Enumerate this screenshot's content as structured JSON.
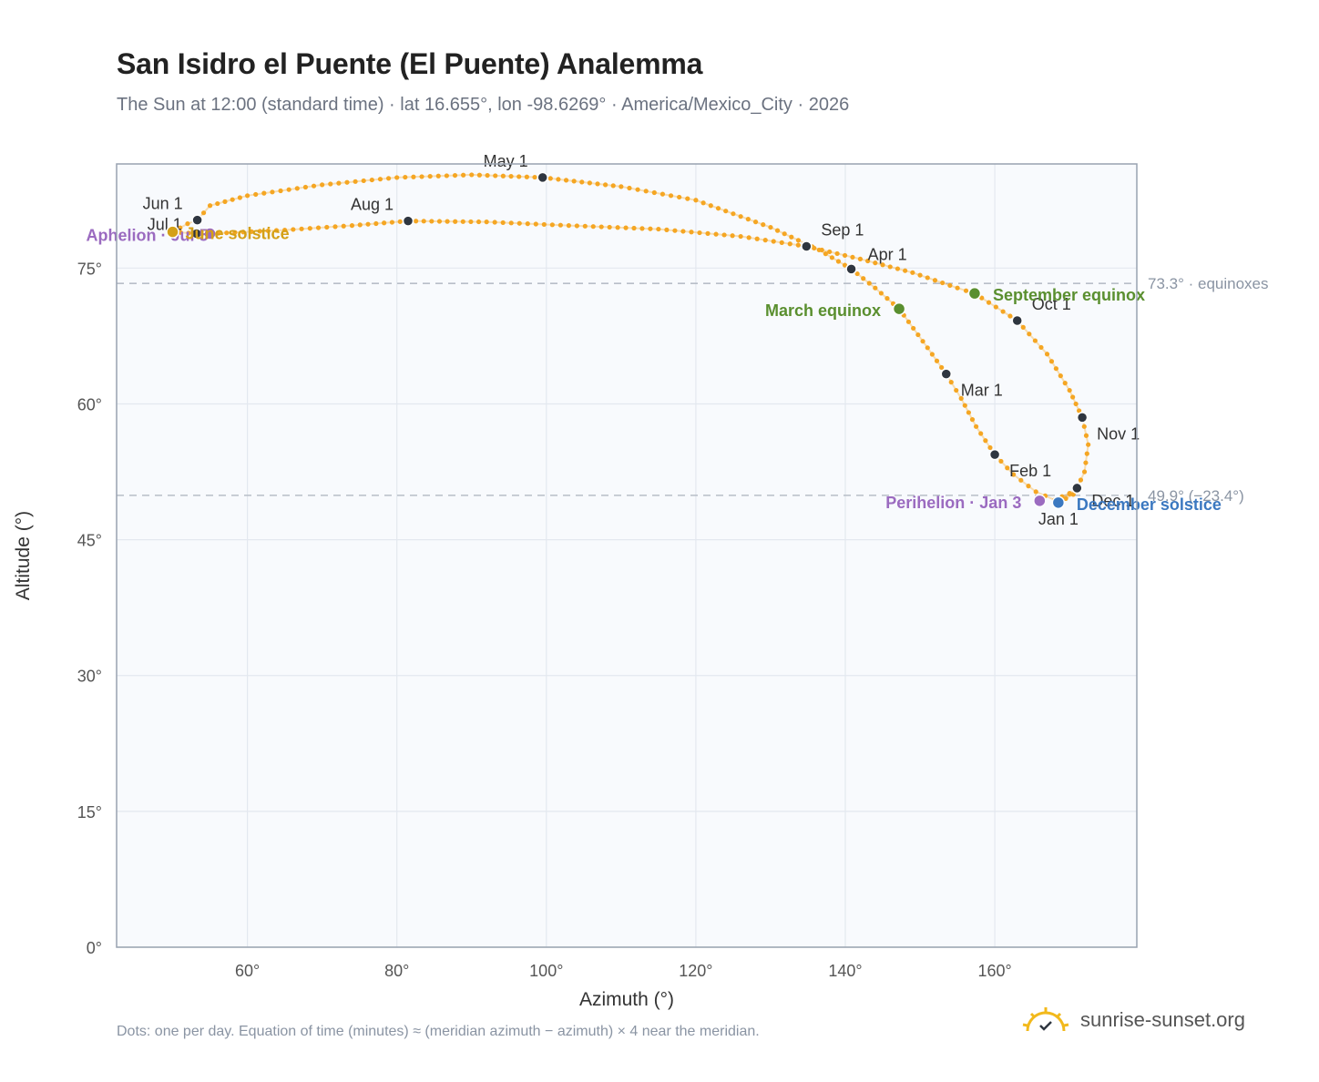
{
  "header": {
    "title": "San Isidro el Puente (El Puente) Analemma",
    "subtitle": "The Sun at 12:00 (standard time) · lat 16.655°, lon -98.6269° · America/Mexico_City · 2026"
  },
  "footer": {
    "note": "Dots: one per day. Equation of time (minutes) ≈ (meridian azimuth − azimuth) × 4 near the meridian.",
    "brand": "sunrise-sunset.org"
  },
  "colors": {
    "curve": "#f5a623",
    "month_dot": "#2f3640",
    "equinox": "#5a8f2f",
    "aphelion": "#9b6bc0",
    "december_solstice": "#3b78c0",
    "june_solstice": "#d4a017",
    "plot_bg": "#f8fafd",
    "grid": "#e3e8ef",
    "ref_line": "#b8bec8"
  },
  "chart_data": {
    "type": "scatter",
    "xlabel": "Azimuth (°)",
    "ylabel": "Altitude (°)",
    "xlim": [
      42.5,
      179
    ],
    "ylim": [
      0,
      86.5
    ],
    "x_ticks": [
      60,
      80,
      100,
      120,
      140,
      160
    ],
    "x_tick_labels": [
      "60°",
      "80°",
      "100°",
      "120°",
      "140°",
      "160°"
    ],
    "y_ticks": [
      0,
      15,
      30,
      45,
      60,
      75
    ],
    "y_tick_labels": [
      "0°",
      "15°",
      "30°",
      "45°",
      "60°",
      "75°"
    ],
    "grid": true,
    "reference_lines": [
      {
        "y": 73.3,
        "label": "73.3° · equinoxes"
      },
      {
        "y": 49.9,
        "label": "49.9° (−23.4°)"
      }
    ],
    "curve_points": [
      [
        168.5,
        49.1
      ],
      [
        170.5,
        50.0
      ],
      [
        171.0,
        50.5
      ],
      [
        168.0,
        49.4
      ],
      [
        165.5,
        50.3
      ],
      [
        162.5,
        52.2
      ],
      [
        160.0,
        54.4
      ],
      [
        157.5,
        57.5
      ],
      [
        155.5,
        60.6
      ],
      [
        153.5,
        63.3
      ],
      [
        151.0,
        66.2
      ],
      [
        147.2,
        70.5
      ],
      [
        144.0,
        72.8
      ],
      [
        140.8,
        74.9
      ],
      [
        136.5,
        77.0
      ],
      [
        130.0,
        79.5
      ],
      [
        120.0,
        82.5
      ],
      [
        110.0,
        84.0
      ],
      [
        99.5,
        85.0
      ],
      [
        90.0,
        85.3
      ],
      [
        80.0,
        85.0
      ],
      [
        70.0,
        84.2
      ],
      [
        60.0,
        83.0
      ],
      [
        55.0,
        81.9
      ],
      [
        53.3,
        80.3
      ],
      [
        52.0,
        79.9
      ],
      [
        50.0,
        79.0
      ],
      [
        53.2,
        78.8
      ],
      [
        55.0,
        78.8
      ],
      [
        65.0,
        79.2
      ],
      [
        74.0,
        79.7
      ],
      [
        81.5,
        80.2
      ],
      [
        92.0,
        80.1
      ],
      [
        103.0,
        79.7
      ],
      [
        115.0,
        79.3
      ],
      [
        126.0,
        78.5
      ],
      [
        134.8,
        77.4
      ],
      [
        142.0,
        76.0
      ],
      [
        149.0,
        74.5
      ],
      [
        155.0,
        72.8
      ],
      [
        157.3,
        72.2
      ],
      [
        163.0,
        69.2
      ],
      [
        167.0,
        65.5
      ],
      [
        170.0,
        61.5
      ],
      [
        171.7,
        58.5
      ],
      [
        172.5,
        55.5
      ],
      [
        172.0,
        52.5
      ],
      [
        171.0,
        50.7
      ],
      [
        169.0,
        49.4
      ],
      [
        168.5,
        49.1
      ]
    ],
    "month_markers": [
      {
        "label": "Jan 1",
        "x": 168.5,
        "y": 49.1
      },
      {
        "label": "Feb 1",
        "x": 160.0,
        "y": 54.4
      },
      {
        "label": "Mar 1",
        "x": 153.5,
        "y": 63.3
      },
      {
        "label": "Apr 1",
        "x": 140.8,
        "y": 74.9
      },
      {
        "label": "May 1",
        "x": 99.5,
        "y": 85.0
      },
      {
        "label": "Jun 1",
        "x": 53.3,
        "y": 80.3
      },
      {
        "label": "Jul 1",
        "x": 53.2,
        "y": 78.8
      },
      {
        "label": "Aug 1",
        "x": 81.5,
        "y": 80.2
      },
      {
        "label": "Sep 1",
        "x": 134.8,
        "y": 77.4
      },
      {
        "label": "Oct 1",
        "x": 163.0,
        "y": 69.2
      },
      {
        "label": "Nov 1",
        "x": 171.7,
        "y": 58.5
      },
      {
        "label": "Dec 1",
        "x": 171.0,
        "y": 50.7
      }
    ],
    "events": [
      {
        "label": "March equinox",
        "x": 147.2,
        "y": 70.5,
        "color_key": "equinox"
      },
      {
        "label": "September equinox",
        "x": 157.3,
        "y": 72.2,
        "color_key": "equinox"
      },
      {
        "label": "Perihelion · Jan 3",
        "x": 166.0,
        "y": 49.3,
        "color_key": "aphelion"
      },
      {
        "label": "December solstice",
        "x": 168.5,
        "y": 49.1,
        "color_key": "december_solstice"
      },
      {
        "label": "Aphelion · Jul 5",
        "x": 55.0,
        "y": 78.8,
        "color_key": "aphelion"
      },
      {
        "label": "June solstice",
        "x": 50.0,
        "y": 79.0,
        "color_key": "june_solstice"
      }
    ]
  }
}
